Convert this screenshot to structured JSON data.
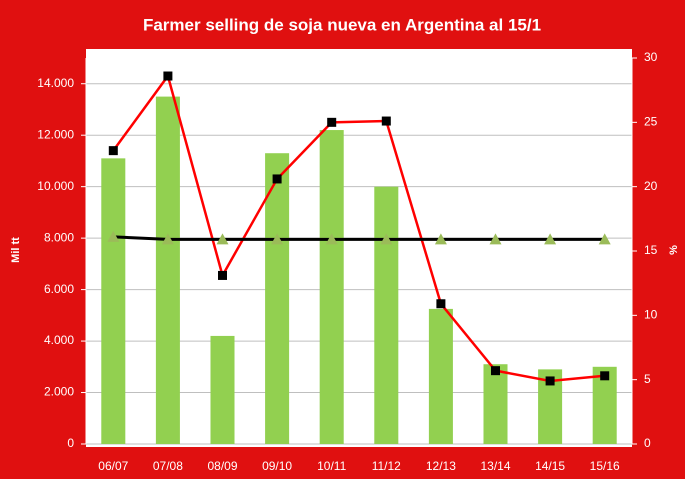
{
  "chart_data": {
    "type": "bar",
    "title": "Farmer selling de soja nueva en Argentina al 15/1",
    "ylabel": "Mil tt",
    "y2label": "%",
    "categories": [
      "06/07",
      "07/08",
      "08/09",
      "09/10",
      "10/11",
      "11/12",
      "12/13",
      "13/14",
      "14/15",
      "15/16"
    ],
    "ylim": [
      0,
      15000
    ],
    "yticks": [
      0,
      {
        "value": 2000,
        "label": "2.000"
      },
      {
        "value": 4000,
        "label": "4.000"
      },
      {
        "value": 6000,
        "label": "6.000"
      },
      {
        "value": 8000,
        "label": "8.000"
      },
      {
        "value": 10000,
        "label": "10.000"
      },
      {
        "value": 12000,
        "label": "12.000"
      },
      {
        "value": 14000,
        "label": "14.000"
      }
    ],
    "y2lim": [
      0,
      30
    ],
    "y2ticks": [
      0,
      5,
      10,
      15,
      20,
      25,
      30
    ],
    "grid": true,
    "series": [
      {
        "type": "bar",
        "color": "#92d050",
        "values": [
          11100,
          13500,
          4200,
          11300,
          12200,
          10000,
          5250,
          3100,
          2900,
          3000
        ]
      },
      {
        "type": "line",
        "axis": "y2",
        "color": "#ff0000",
        "marker": "square",
        "values": [
          22.8,
          28.6,
          13.1,
          20.6,
          25.0,
          25.1,
          10.9,
          5.7,
          4.9,
          5.3
        ]
      },
      {
        "type": "line",
        "axis": "y2",
        "color": "#000000",
        "values": [
          16.1,
          15.9,
          15.9,
          15.9,
          15.9,
          15.9,
          15.9,
          15.9,
          15.9,
          15.9
        ]
      },
      {
        "type": "scatter",
        "axis": "y2",
        "color": "#9bbb59",
        "marker": "triangle",
        "values": [
          16.1,
          15.9,
          15.9,
          15.9,
          15.9,
          15.9,
          15.9,
          15.9,
          15.9,
          15.9
        ]
      }
    ]
  }
}
